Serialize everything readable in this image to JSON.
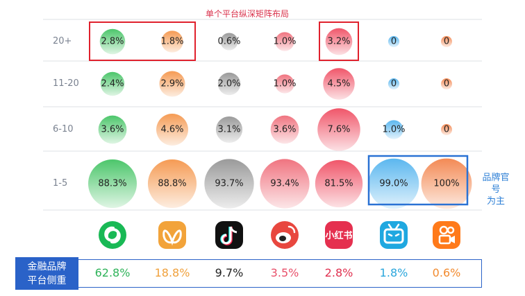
{
  "annotations": {
    "highlight_title": "单个平台纵深矩阵布局",
    "brand_note_line1": "品牌官号",
    "brand_note_line2": "为主",
    "share_label_line1": "金融品牌",
    "share_label_line2": "平台侧重"
  },
  "platform_icons": [
    {
      "icon": "wechat-channels-icon",
      "color": "#19b955"
    },
    {
      "icon": "weibo-butterfly-icon",
      "color": "#f2a33a"
    },
    {
      "icon": "douyin-icon",
      "color": "#111111"
    },
    {
      "icon": "weibo-icon",
      "color": "#e8473f"
    },
    {
      "icon": "xiaohongshu-icon",
      "text": "小红书",
      "color": "#e5304f"
    },
    {
      "icon": "bilibili-icon",
      "color": "#1fa8e0"
    },
    {
      "icon": "kuaishou-icon",
      "color": "#ff7a1a"
    }
  ],
  "chart_data": {
    "type": "bubble-matrix",
    "rows": [
      "20+",
      "11-20",
      "6-10",
      "1-5"
    ],
    "series": [
      {
        "color": "#4cc66b",
        "values": [
          "2.8%",
          "2.4%",
          "3.6%",
          "88.3%"
        ],
        "share": "62.8%"
      },
      {
        "color": "#f59b54",
        "values": [
          "1.8%",
          "2.9%",
          "4.6%",
          "88.8%"
        ],
        "share": "18.8%"
      },
      {
        "color": "#9a9a9a",
        "values": [
          "0.6%",
          "2.0%",
          "3.1%",
          "93.7%"
        ],
        "share": "9.7%"
      },
      {
        "color": "#f07480",
        "values": [
          "1.0%",
          "1.0%",
          "3.6%",
          "93.4%"
        ],
        "share": "3.5%"
      },
      {
        "color": "#f0566a",
        "values": [
          "3.2%",
          "4.5%",
          "7.6%",
          "81.5%"
        ],
        "share": "2.8%"
      },
      {
        "color": "#5bb7ef",
        "values": [
          "0",
          "0",
          "1.0%",
          "99.0%"
        ],
        "share": "1.8%"
      },
      {
        "color": "#f38a55",
        "values": [
          "0",
          "0",
          "0",
          "100%"
        ],
        "share": "0.6%"
      }
    ],
    "share_colors": [
      "#2fb35a",
      "#f0a13c",
      "#222222",
      "#e8506a",
      "#e0304f",
      "#2aa6dc",
      "#f28a2e"
    ]
  }
}
